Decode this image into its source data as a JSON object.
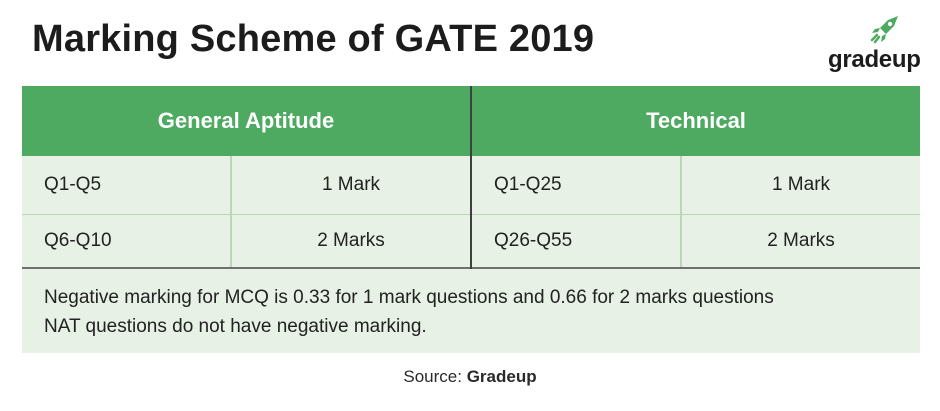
{
  "title": "Marking Scheme of GATE 2019",
  "logo": {
    "text": "gradeup",
    "icon": "rocket-icon",
    "color": "#4eaa60"
  },
  "table": {
    "headers": [
      "General Aptitude",
      "Technical"
    ],
    "general_aptitude": [
      {
        "questions": "Q1-Q5",
        "marks": "1 Mark"
      },
      {
        "questions": "Q6-Q10",
        "marks": "2 Marks"
      }
    ],
    "technical": [
      {
        "questions": "Q1-Q25",
        "marks": "1 Mark"
      },
      {
        "questions": "Q26-Q55",
        "marks": "2 Marks"
      }
    ],
    "notes": [
      "Negative marking for MCQ is 0.33 for 1 mark questions and 0.66 for 2 marks questions",
      "NAT questions do not have negative marking."
    ]
  },
  "source": {
    "label": "Source:",
    "name": "Gradeup"
  },
  "colors": {
    "header_bg": "#4eaa60",
    "row_bg": "#e7f1e5"
  }
}
